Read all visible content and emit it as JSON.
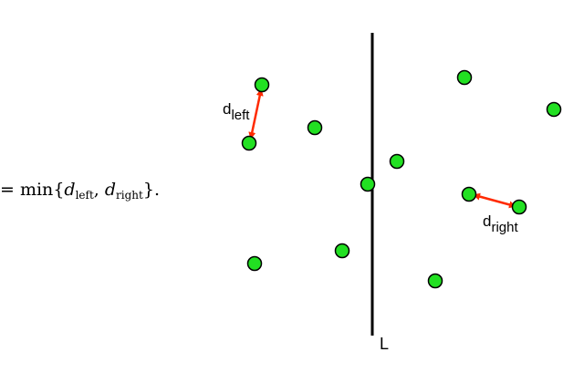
{
  "formula": {
    "equals": "=",
    "func": "min",
    "open_brace": "{",
    "var1": "d",
    "var1_sub": "left",
    "comma": ",",
    "var2": "d",
    "var2_sub": "right",
    "close": "}."
  },
  "line_label": "L",
  "annotations": {
    "left": {
      "main": "d",
      "sub": "left"
    },
    "right": {
      "main": "d",
      "sub": "right"
    }
  },
  "colors": {
    "point_fill": "#22e022",
    "point_stroke": "#000000",
    "arrow": "#ff2a00",
    "line": "#000000"
  }
}
